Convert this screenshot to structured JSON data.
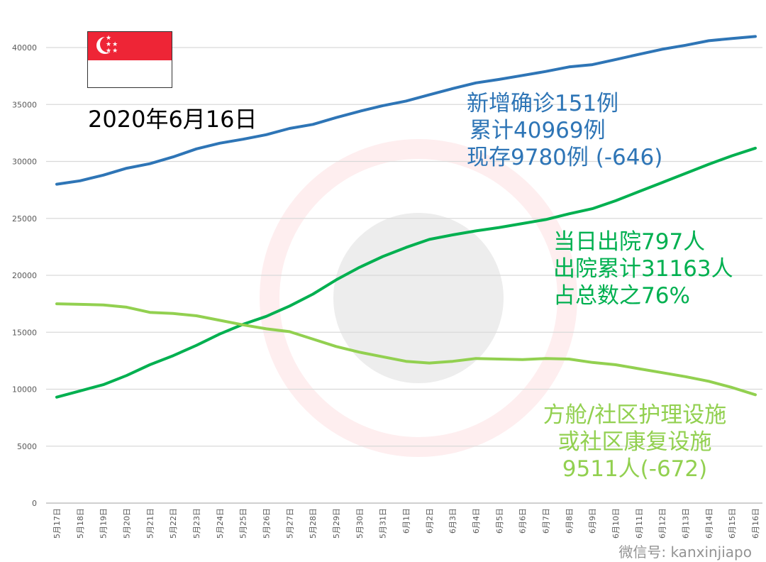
{
  "header": {
    "date": "2020年6月16日",
    "watermark": "微信号: kanxinjiapo"
  },
  "colors": {
    "confirmed": "#2e75b6",
    "discharged": "#00b050",
    "community": "#92d050",
    "flag_red": "#ee2536"
  },
  "icons": {
    "flag": "singapore-flag-icon"
  },
  "annotations": {
    "confirmed": [
      "新增确诊151例",
      "累计40969例",
      "现存9780例 (-646)"
    ],
    "discharged": [
      "当日出院797人",
      "出院累计31163人",
      "占总数之76%"
    ],
    "community": [
      "方舱/社区护理设施",
      "或社区康复设施",
      "9511人(-672)"
    ]
  },
  "chart_data": {
    "type": "line",
    "categories": [
      "5月17日",
      "5月18日",
      "5月19日",
      "5月20日",
      "5月21日",
      "5月22日",
      "5月23日",
      "5月24日",
      "5月25日",
      "5月26日",
      "5月27日",
      "5月28日",
      "5月29日",
      "5月30日",
      "5月31日",
      "6月1日",
      "6月2日",
      "6月3日",
      "6月4日",
      "6月5日",
      "6月6日",
      "6月7日",
      "6月8日",
      "6月9日",
      "6月10日",
      "6月11日",
      "6月12日",
      "6月13日",
      "6月14日",
      "6月15日",
      "6月16日"
    ],
    "ylim": [
      0,
      40000
    ],
    "yticks": [
      0,
      5000,
      10000,
      15000,
      20000,
      25000,
      30000,
      35000,
      40000
    ],
    "grid": true,
    "series": [
      {
        "key": "confirmed",
        "values": [
          28000,
          28300,
          28800,
          29400,
          29800,
          30400,
          31100,
          31600,
          31950,
          32350,
          32900,
          33250,
          33850,
          34400,
          34900,
          35300,
          35850,
          36400,
          36900,
          37200,
          37550,
          37900,
          38300,
          38500,
          38950,
          39400,
          39850,
          40200,
          40600,
          40800,
          40969
        ]
      },
      {
        "key": "discharged",
        "values": [
          9300,
          9850,
          10400,
          11200,
          12150,
          12950,
          13850,
          14850,
          15700,
          16400,
          17300,
          18350,
          19600,
          20700,
          21650,
          22450,
          23150,
          23550,
          23900,
          24200,
          24550,
          24900,
          25400,
          25850,
          26550,
          27350,
          28150,
          28950,
          29750,
          30500,
          31163
        ]
      },
      {
        "key": "community",
        "values": [
          17500,
          17450,
          17400,
          17200,
          16750,
          16650,
          16450,
          16050,
          15650,
          15300,
          15050,
          14400,
          13750,
          13250,
          12850,
          12450,
          12300,
          12450,
          12700,
          12650,
          12600,
          12700,
          12650,
          12350,
          12150,
          11800,
          11450,
          11100,
          10700,
          10150,
          9511
        ]
      }
    ]
  }
}
